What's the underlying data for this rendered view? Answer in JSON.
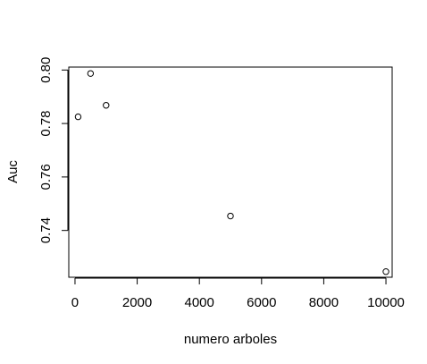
{
  "chart_data": {
    "type": "scatter",
    "title": "",
    "xlabel": "numero arboles",
    "ylabel": "Auc",
    "xlim": [
      -200,
      10200
    ],
    "ylim": [
      0.7225,
      0.8011
    ],
    "x_ticks": [
      0,
      2000,
      4000,
      6000,
      8000,
      10000
    ],
    "x_tick_labels": [
      "0",
      "2000",
      "4000",
      "6000",
      "8000",
      "10000"
    ],
    "y_ticks": [
      0.74,
      0.76,
      0.78,
      0.8
    ],
    "y_tick_labels": [
      "0.74",
      "0.76",
      "0.78",
      "0.80"
    ],
    "grid": false,
    "points": [
      {
        "x": 100,
        "y": 0.7825
      },
      {
        "x": 500,
        "y": 0.7987
      },
      {
        "x": 1000,
        "y": 0.7868
      },
      {
        "x": 5000,
        "y": 0.7454
      },
      {
        "x": 10000,
        "y": 0.7246
      }
    ],
    "colors": {
      "points": "#000000",
      "axes": "#000000",
      "background": "#ffffff"
    }
  }
}
